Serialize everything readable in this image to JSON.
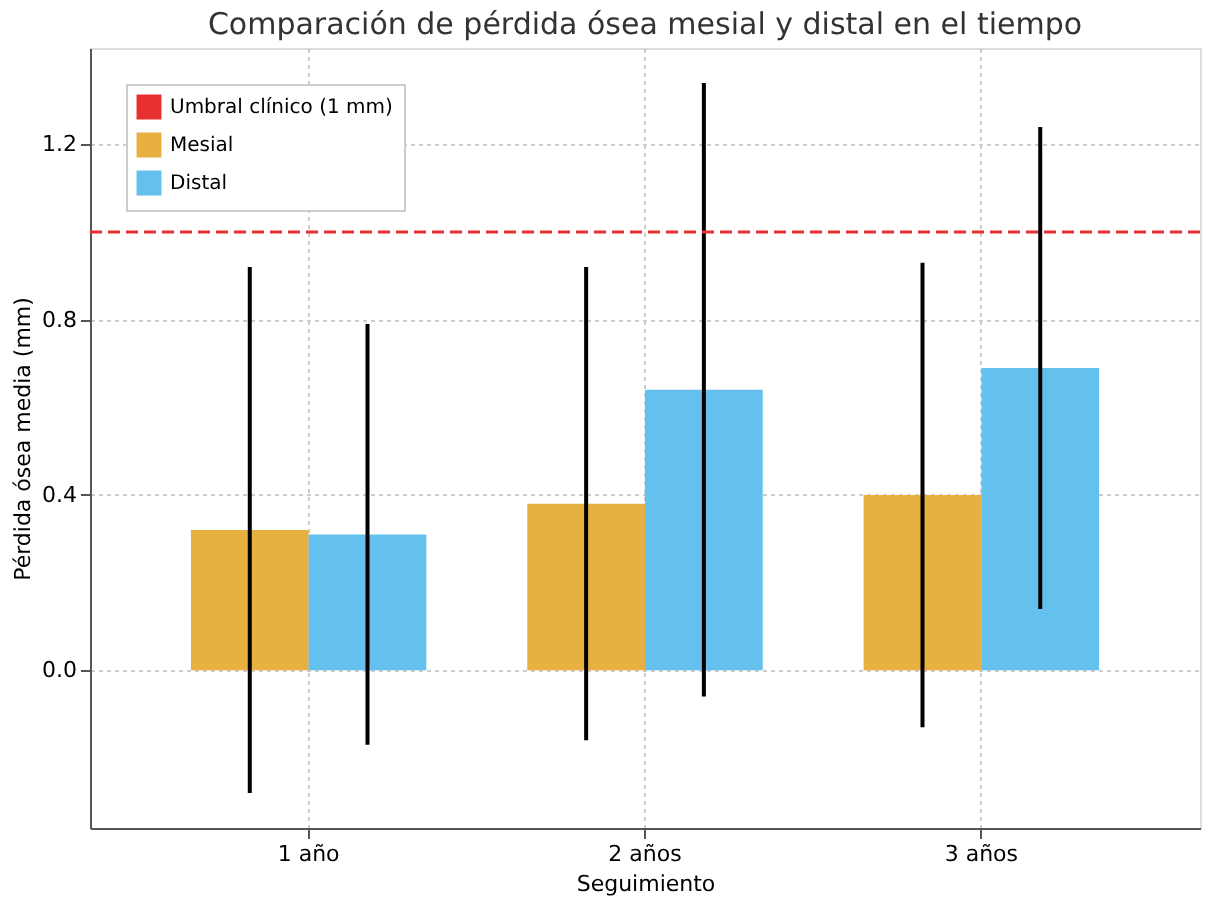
{
  "chart_data": {
    "type": "bar",
    "title": "Comparación de pérdida ósea mesial y distal en el tiempo",
    "xlabel": "Seguimiento",
    "ylabel": "Pérdida ósea media (mm)",
    "categories": [
      "1 año",
      "2 años",
      "3 años"
    ],
    "series": [
      {
        "name": "Mesial",
        "color": "#e8b040",
        "values": [
          0.32,
          0.38,
          0.4
        ],
        "errors": [
          0.6,
          0.54,
          0.53
        ]
      },
      {
        "name": "Distal",
        "color": "#64c0ec",
        "values": [
          0.31,
          0.64,
          0.69
        ],
        "errors": [
          0.48,
          0.7,
          0.55
        ]
      }
    ],
    "ylim": [
      -0.36,
      1.42
    ],
    "yticks": [
      {
        "value": 0,
        "label": "0.0"
      },
      {
        "value": 0.4,
        "label": "0.4"
      },
      {
        "value": 0.8,
        "label": "0.8"
      },
      {
        "value": 1.2,
        "label": "1.2"
      }
    ],
    "ref_lines": [
      {
        "axis": "y",
        "value": 1.0,
        "label": "Umbral clínico (1 mm)",
        "color": "#e83030",
        "line_style": "dashed"
      }
    ],
    "grid": true,
    "legend": "top left"
  }
}
